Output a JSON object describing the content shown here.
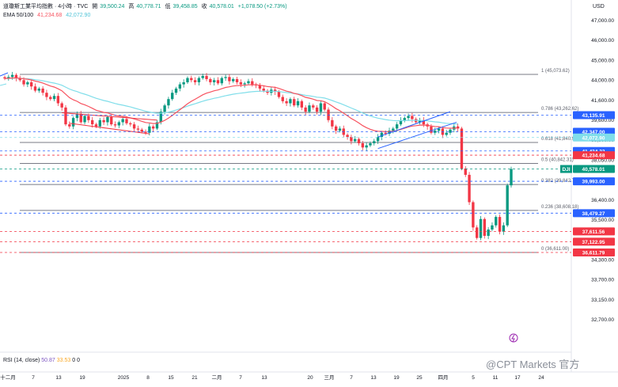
{
  "header": {
    "title": "道瓊斯工業平均指數 · 4小時 · TVC",
    "open_label": "開",
    "open": "39,500.24",
    "high_label": "高",
    "high": "40,778.71",
    "low_label": "低",
    "low": "39,458.85",
    "close_label": "收",
    "close": "40,578.01",
    "change": "+1,078.50 (+2.73%)",
    "ema_label": "EMA 50/100",
    "ema50": "41,234.68",
    "ema100": "42,072.90"
  },
  "currency": "USD",
  "rsi": {
    "label": "RSI (14, close)",
    "v1": "50.87",
    "v2": "33.53",
    "v3": "0",
    "v4": "0"
  },
  "watermark": "@CPT Markets 官方",
  "colors": {
    "up": "#089981",
    "down": "#f23645",
    "ema50": "#f7525f",
    "ema100": "#80deea",
    "trend": "#2962ff",
    "fib": "#787b86"
  },
  "chart_data": {
    "type": "candlestick",
    "yaxis_ticks": [
      "47,000.00",
      "46,000.00",
      "45,000.00",
      "44,000.00",
      "41,600.00",
      "39,600.00",
      "38,800.00",
      "38,050.00",
      "37,300.00",
      "36,400.00",
      "35,500.00",
      "34,900.00",
      "34,300.00",
      "33,700.00",
      "33,150.00",
      "32,700.00"
    ],
    "xaxis_ticks": [
      "十二月",
      "7",
      "13",
      "19",
      "2025",
      "8",
      "15",
      "21",
      "二月",
      "7",
      "13",
      "20",
      "三月",
      "7",
      "13",
      "19",
      "25",
      "四月",
      "5",
      "11",
      "17",
      "24"
    ],
    "fib_levels": [
      {
        "label": "1 (45,073.62)",
        "value": 45073.62
      },
      {
        "label": "0.786 (43,262.62)",
        "value": 43262.62
      },
      {
        "label": "0.618 (41,840.90)",
        "value": 41840.9
      },
      {
        "label": "0.5 (40,842.31)",
        "value": 40842.31
      },
      {
        "label": "0.382 (39,842.72)",
        "value": 39842.72
      },
      {
        "label": "0.236 (38,608.18)",
        "value": 38608.18
      },
      {
        "label": "0 (36,611.00)",
        "value": 36611.0
      }
    ],
    "price_tags": [
      {
        "label": "43,135.91",
        "value": 43135.91,
        "color": "#2962ff"
      },
      {
        "label": "42,347.00",
        "value": 42347.0,
        "color": "#2962ff"
      },
      {
        "label": "42,072.90",
        "value": 42072.9,
        "color": "#80deea"
      },
      {
        "label": "41,434.22",
        "value": 41434.22,
        "color": "#2962ff"
      },
      {
        "label": "41,234.68",
        "value": 41234.68,
        "color": "#f23645"
      },
      {
        "label": "40,578.01",
        "value": 40578.01,
        "color": "#089981",
        "prefix": "DJI"
      },
      {
        "label": "39,993.00",
        "value": 39993.0,
        "color": "#2962ff"
      },
      {
        "label": "38,479.27",
        "value": 38479.27,
        "color": "#2962ff"
      },
      {
        "label": "37,611.56",
        "value": 37611.56,
        "color": "#f23645"
      },
      {
        "label": "37,122.95",
        "value": 37122.95,
        "color": "#f23645"
      },
      {
        "label": "36,611.79",
        "value": 36611.79,
        "color": "#f23645"
      }
    ],
    "close_series": [
      44880,
      44950,
      45050,
      44900,
      44800,
      44600,
      44700,
      44500,
      44300,
      44400,
      44200,
      44000,
      43900,
      44050,
      43700,
      43500,
      42700,
      42600,
      43000,
      43200,
      42800,
      43100,
      42900,
      42700,
      42600,
      42900,
      42800,
      43050,
      42700,
      42650,
      42800,
      42950,
      42750,
      42700,
      42500,
      42450,
      42350,
      42300,
      42600,
      42500,
      42800,
      43300,
      43600,
      43900,
      44200,
      44400,
      44600,
      44700,
      44900,
      44800,
      44700,
      44900,
      45000,
      44850,
      44700,
      44800,
      44650,
      44900,
      44950,
      44750,
      44850,
      44700,
      44600,
      44650,
      44750,
      44600,
      44550,
      44400,
      44300,
      44200,
      44350,
      44250,
      44000,
      43800,
      43700,
      43900,
      43600,
      43800,
      43500,
      43300,
      43600,
      43500,
      43300,
      43700,
      43400,
      42900,
      42600,
      42400,
      42500,
      42200,
      42100,
      41900,
      42000,
      41800,
      41600,
      41700,
      41800,
      41900,
      42100,
      42300,
      42250,
      42400,
      42500,
      42700,
      42900,
      43000,
      43100,
      42950,
      42800,
      42900,
      42700,
      42600,
      42300,
      42400,
      42500,
      42200,
      42300,
      42450,
      42600,
      42500,
      40600,
      40300,
      39000,
      37800,
      37300,
      38200,
      37400,
      37700,
      37900,
      38300,
      37600,
      37900,
      39800,
      40578
    ]
  }
}
